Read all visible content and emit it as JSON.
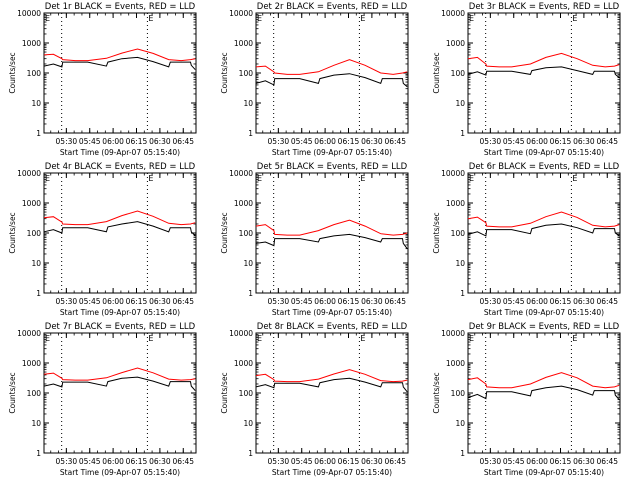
{
  "figure": {
    "ylabel": "Counts/sec",
    "xlabel": "Start Time (09-Apr-07 05:15:40)",
    "x_tick_labels": [
      "05:30",
      "05:45",
      "06:00",
      "06:15",
      "06:30",
      "06:45"
    ],
    "y_tick_labels": [
      "1",
      "10",
      "100",
      "1000",
      "10000"
    ],
    "corner_mark": "E",
    "colors": {
      "events": "#000000",
      "lld": "#ff0000",
      "axes": "#000000",
      "background": "#ffffff"
    }
  },
  "chart_data": [
    {
      "type": "line",
      "title": "Det 1r BLACK = Events, RED = LLD",
      "xlabel": "Start Time (09-Apr-07 05:15:40)",
      "ylabel": "Counts/sec",
      "x_units": "minutes after 05:15:40",
      "yscale": "log",
      "ylim": [
        1,
        10000
      ],
      "x_ticks": [
        "05:30",
        "05:45",
        "06:00",
        "06:15",
        "06:30",
        "06:45"
      ],
      "vlines": [
        "05:27",
        "06:22"
      ],
      "series": [
        {
          "name": "Events",
          "color": "#000000",
          "x": [
            0,
            6,
            11.5,
            12,
            20,
            28,
            40,
            41,
            50,
            60,
            70,
            80,
            81,
            88,
            94,
            94.5,
            97
          ],
          "y": [
            170,
            200,
            160,
            230,
            230,
            230,
            170,
            230,
            300,
            330,
            240,
            160,
            230,
            230,
            230,
            180,
            130
          ]
        },
        {
          "name": "LLD",
          "color": "#ff0000",
          "x": [
            0,
            6,
            11.5,
            12,
            20,
            28,
            40,
            50,
            60,
            70,
            80,
            88,
            94,
            97
          ],
          "y": [
            400,
            420,
            300,
            280,
            260,
            260,
            310,
            460,
            630,
            450,
            280,
            260,
            280,
            300
          ]
        }
      ]
    },
    {
      "type": "line",
      "title": "Det 2r BLACK = Events, RED = LLD",
      "xlabel": "Start Time (09-Apr-07 05:15:40)",
      "ylabel": "Counts/sec",
      "x_units": "minutes after 05:15:40",
      "yscale": "log",
      "ylim": [
        1,
        10000
      ],
      "x_ticks": [
        "05:30",
        "05:45",
        "06:00",
        "06:15",
        "06:30",
        "06:45"
      ],
      "vlines": [
        "05:27",
        "06:22"
      ],
      "series": [
        {
          "name": "Events",
          "color": "#000000",
          "x": [
            0,
            6,
            11.5,
            12,
            20,
            28,
            40,
            41,
            50,
            60,
            70,
            80,
            81,
            88,
            94,
            94.5,
            97
          ],
          "y": [
            45,
            55,
            40,
            65,
            65,
            65,
            45,
            65,
            85,
            95,
            70,
            45,
            65,
            65,
            65,
            45,
            35
          ]
        },
        {
          "name": "LLD",
          "color": "#ff0000",
          "x": [
            0,
            6,
            11.5,
            12,
            20,
            28,
            40,
            50,
            60,
            70,
            80,
            88,
            94,
            97
          ],
          "y": [
            160,
            170,
            110,
            100,
            90,
            90,
            110,
            180,
            280,
            180,
            100,
            90,
            100,
            110
          ]
        }
      ]
    },
    {
      "type": "line",
      "title": "Det 3r BLACK = Events, RED = LLD",
      "xlabel": "Start Time (09-Apr-07 05:15:40)",
      "ylabel": "Counts/sec",
      "x_units": "minutes after 05:15:40",
      "yscale": "log",
      "ylim": [
        1,
        10000
      ],
      "x_ticks": [
        "05:30",
        "05:45",
        "06:00",
        "06:15",
        "06:30",
        "06:45"
      ],
      "vlines": [
        "05:27",
        "06:22"
      ],
      "series": [
        {
          "name": "Events",
          "color": "#000000",
          "x": [
            0,
            6,
            11.5,
            12,
            20,
            28,
            40,
            41,
            50,
            60,
            70,
            80,
            81,
            88,
            94,
            94.5,
            97
          ],
          "y": [
            90,
            110,
            85,
            115,
            115,
            115,
            90,
            120,
            150,
            160,
            120,
            90,
            115,
            115,
            115,
            90,
            70
          ]
        },
        {
          "name": "LLD",
          "color": "#ff0000",
          "x": [
            0,
            6,
            11.5,
            12,
            20,
            28,
            40,
            50,
            60,
            70,
            80,
            88,
            94,
            97
          ],
          "y": [
            300,
            330,
            200,
            170,
            160,
            160,
            200,
            330,
            450,
            300,
            180,
            160,
            170,
            190
          ]
        }
      ]
    },
    {
      "type": "line",
      "title": "Det 4r BLACK = Events, RED = LLD",
      "xlabel": "Start Time (09-Apr-07 05:15:40)",
      "ylabel": "Counts/sec",
      "x_units": "minutes after 05:15:40",
      "yscale": "log",
      "ylim": [
        1,
        10000
      ],
      "x_ticks": [
        "05:30",
        "05:45",
        "06:00",
        "06:15",
        "06:30",
        "06:45"
      ],
      "vlines": [
        "05:27",
        "06:22"
      ],
      "series": [
        {
          "name": "Events",
          "color": "#000000",
          "x": [
            0,
            6,
            11.5,
            12,
            20,
            28,
            40,
            41,
            50,
            60,
            70,
            80,
            81,
            88,
            94,
            94.5,
            97
          ],
          "y": [
            110,
            130,
            100,
            150,
            150,
            150,
            110,
            160,
            200,
            240,
            170,
            110,
            150,
            150,
            150,
            110,
            80
          ]
        },
        {
          "name": "LLD",
          "color": "#ff0000",
          "x": [
            0,
            6,
            11.5,
            12,
            20,
            28,
            40,
            50,
            60,
            70,
            80,
            88,
            94,
            97
          ],
          "y": [
            320,
            350,
            230,
            200,
            190,
            190,
            240,
            380,
            540,
            360,
            210,
            190,
            200,
            220
          ]
        }
      ]
    },
    {
      "type": "line",
      "title": "Det 5r BLACK = Events, RED = LLD",
      "xlabel": "Start Time (09-Apr-07 05:15:40)",
      "ylabel": "Counts/sec",
      "x_units": "minutes after 05:15:40",
      "yscale": "log",
      "ylim": [
        1,
        10000
      ],
      "x_ticks": [
        "05:30",
        "05:45",
        "06:00",
        "06:15",
        "06:30",
        "06:45"
      ],
      "vlines": [
        "05:27",
        "06:22"
      ],
      "series": [
        {
          "name": "Events",
          "color": "#000000",
          "x": [
            0,
            6,
            11.5,
            12,
            20,
            28,
            40,
            41,
            50,
            60,
            70,
            80,
            81,
            88,
            94,
            94.5,
            97
          ],
          "y": [
            45,
            50,
            38,
            65,
            65,
            65,
            50,
            65,
            80,
            90,
            70,
            50,
            65,
            65,
            65,
            45,
            30
          ]
        },
        {
          "name": "LLD",
          "color": "#ff0000",
          "x": [
            0,
            6,
            11.5,
            12,
            20,
            28,
            40,
            50,
            60,
            70,
            80,
            88,
            94,
            97
          ],
          "y": [
            170,
            190,
            120,
            90,
            85,
            85,
            120,
            190,
            270,
            170,
            95,
            85,
            90,
            100
          ]
        }
      ]
    },
    {
      "type": "line",
      "title": "Det 6r BLACK = Events, RED = LLD",
      "xlabel": "Start Time (09-Apr-07 05:15:40)",
      "ylabel": "Counts/sec",
      "x_units": "minutes after 05:15:40",
      "yscale": "log",
      "ylim": [
        1,
        10000
      ],
      "x_ticks": [
        "05:30",
        "05:45",
        "06:00",
        "06:15",
        "06:30",
        "06:45"
      ],
      "vlines": [
        "05:27",
        "06:22"
      ],
      "series": [
        {
          "name": "Events",
          "color": "#000000",
          "x": [
            0,
            6,
            11.5,
            12,
            20,
            28,
            40,
            41,
            50,
            60,
            70,
            80,
            81,
            88,
            94,
            94.5,
            97
          ],
          "y": [
            90,
            110,
            80,
            130,
            130,
            130,
            95,
            140,
            180,
            200,
            150,
            100,
            140,
            140,
            140,
            100,
            80
          ]
        },
        {
          "name": "LLD",
          "color": "#ff0000",
          "x": [
            0,
            6,
            11.5,
            12,
            20,
            28,
            40,
            50,
            60,
            70,
            80,
            88,
            94,
            97
          ],
          "y": [
            300,
            340,
            220,
            170,
            160,
            160,
            210,
            350,
            500,
            330,
            180,
            160,
            170,
            190
          ]
        }
      ]
    },
    {
      "type": "line",
      "title": "Det 7r BLACK = Events, RED = LLD",
      "xlabel": "Start Time (09-Apr-07 05:15:40)",
      "ylabel": "Counts/sec",
      "x_units": "minutes after 05:15:40",
      "yscale": "log",
      "ylim": [
        1,
        10000
      ],
      "x_ticks": [
        "05:30",
        "05:45",
        "06:00",
        "06:15",
        "06:30",
        "06:45"
      ],
      "vlines": [
        "05:27",
        "06:22"
      ],
      "series": [
        {
          "name": "Events",
          "color": "#000000",
          "x": [
            0,
            6,
            11.5,
            12,
            20,
            28,
            40,
            41,
            50,
            60,
            70,
            80,
            81,
            88,
            94,
            94.5,
            97
          ],
          "y": [
            170,
            200,
            160,
            230,
            230,
            230,
            170,
            240,
            310,
            340,
            250,
            170,
            240,
            240,
            240,
            170,
            120
          ]
        },
        {
          "name": "LLD",
          "color": "#ff0000",
          "x": [
            0,
            6,
            11.5,
            12,
            20,
            28,
            40,
            50,
            60,
            70,
            80,
            88,
            94,
            97
          ],
          "y": [
            420,
            460,
            310,
            280,
            270,
            270,
            320,
            480,
            680,
            470,
            290,
            270,
            280,
            300
          ]
        }
      ]
    },
    {
      "type": "line",
      "title": "Det 8r BLACK = Events, RED = LLD",
      "xlabel": "Start Time (09-Apr-07 05:15:40)",
      "ylabel": "Counts/sec",
      "x_units": "minutes after 05:15:40",
      "yscale": "log",
      "ylim": [
        1,
        10000
      ],
      "x_ticks": [
        "05:30",
        "05:45",
        "06:00",
        "06:15",
        "06:30",
        "06:45"
      ],
      "vlines": [
        "05:27",
        "06:22"
      ],
      "series": [
        {
          "name": "Events",
          "color": "#000000",
          "x": [
            0,
            6,
            11.5,
            12,
            20,
            28,
            40,
            41,
            50,
            60,
            70,
            80,
            81,
            88,
            94,
            94.5,
            97
          ],
          "y": [
            160,
            190,
            150,
            210,
            210,
            210,
            160,
            220,
            280,
            310,
            230,
            160,
            220,
            220,
            220,
            160,
            110
          ]
        },
        {
          "name": "LLD",
          "color": "#ff0000",
          "x": [
            0,
            6,
            11.5,
            12,
            20,
            28,
            40,
            50,
            60,
            70,
            80,
            88,
            94,
            97
          ],
          "y": [
            380,
            420,
            280,
            250,
            240,
            240,
            290,
            430,
            600,
            420,
            260,
            240,
            250,
            270
          ]
        }
      ]
    },
    {
      "type": "line",
      "title": "Det 9r BLACK = Events, RED = LLD",
      "xlabel": "Start Time (09-Apr-07 05:15:40)",
      "ylabel": "Counts/sec",
      "x_units": "minutes after 05:15:40",
      "yscale": "log",
      "ylim": [
        1,
        10000
      ],
      "x_ticks": [
        "05:30",
        "05:45",
        "06:00",
        "06:15",
        "06:30",
        "06:45"
      ],
      "vlines": [
        "05:27",
        "06:22"
      ],
      "series": [
        {
          "name": "Events",
          "color": "#000000",
          "x": [
            0,
            6,
            11.5,
            12,
            20,
            28,
            40,
            41,
            50,
            60,
            70,
            80,
            81,
            88,
            94,
            94.5,
            97
          ],
          "y": [
            70,
            90,
            65,
            110,
            110,
            110,
            80,
            120,
            150,
            170,
            130,
            85,
            120,
            120,
            120,
            85,
            60
          ]
        },
        {
          "name": "LLD",
          "color": "#ff0000",
          "x": [
            0,
            6,
            11.5,
            12,
            20,
            28,
            40,
            50,
            60,
            70,
            80,
            88,
            94,
            97
          ],
          "y": [
            280,
            320,
            200,
            160,
            150,
            150,
            200,
            330,
            480,
            320,
            170,
            150,
            160,
            180
          ]
        }
      ]
    }
  ]
}
